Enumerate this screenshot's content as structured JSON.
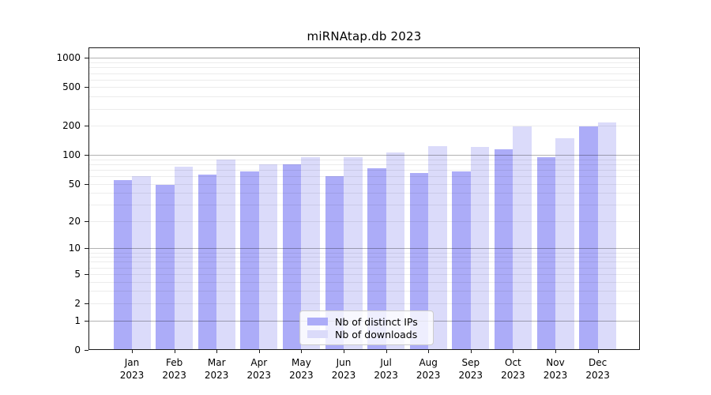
{
  "title": "miRNAtap.db 2023",
  "chart_data": {
    "type": "bar",
    "title": "miRNAtap.db 2023",
    "categories": [
      "Jan 2023",
      "Feb 2023",
      "Mar 2023",
      "Apr 2023",
      "May 2023",
      "Jun 2023",
      "Jul 2023",
      "Aug 2023",
      "Sep 2023",
      "Oct 2023",
      "Nov 2023",
      "Dec 2023"
    ],
    "series": [
      {
        "name": "Nb of distinct IPs",
        "color": "#acacf8",
        "values": [
          54,
          49,
          62,
          67,
          80,
          60,
          72,
          65,
          67,
          114,
          94,
          197
        ]
      },
      {
        "name": "Nb of downloads",
        "color": "#dbdbfa",
        "values": [
          60,
          75,
          90,
          80,
          94,
          95,
          105,
          124,
          120,
          199,
          149,
          215
        ]
      }
    ],
    "yscale": "log1p",
    "yticks": [
      {
        "value": 0,
        "label": "0"
      },
      {
        "value": 1,
        "label": "1"
      },
      {
        "value": 2,
        "label": "2"
      },
      {
        "value": 5,
        "label": "5"
      },
      {
        "value": 10,
        "label": "10"
      },
      {
        "value": 20,
        "label": "20"
      },
      {
        "value": 50,
        "label": "50"
      },
      {
        "value": 100,
        "label": "100"
      },
      {
        "value": 200,
        "label": "200"
      },
      {
        "value": 500,
        "label": "500"
      },
      {
        "value": 1000,
        "label": "1000"
      }
    ],
    "ylim": [
      0,
      1300
    ],
    "xlabel": "",
    "ylabel": "",
    "grid": true,
    "legend_position": "lower-center"
  },
  "colors": {
    "distinct_ips": "#acacf8",
    "downloads": "#dbdbfa",
    "grid_major": "#b3b3b3",
    "grid_minor": "#e8e8e8",
    "spine": "#1a1a1a",
    "legend_border": "#cccccc"
  }
}
